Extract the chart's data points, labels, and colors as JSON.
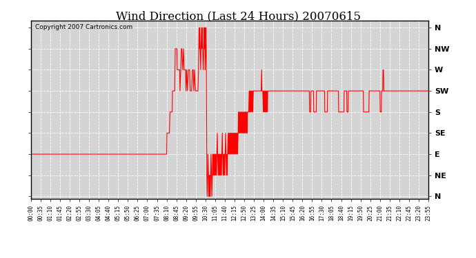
{
  "title": "Wind Direction (Last 24 Hours) 20070615",
  "copyright": "Copyright 2007 Cartronics.com",
  "line_color": "#ff0000",
  "bg_color": "#ffffff",
  "plot_bg_color": "#d8d8d8",
  "ytick_labels": [
    "N",
    "NW",
    "W",
    "SW",
    "S",
    "SE",
    "E",
    "NE",
    "N"
  ],
  "ytick_values": [
    360,
    315,
    270,
    225,
    180,
    135,
    90,
    45,
    0
  ],
  "ylim": [
    0,
    360
  ],
  "xtick_labels": [
    "00:00",
    "00:35",
    "01:10",
    "01:45",
    "02:20",
    "02:55",
    "03:30",
    "04:05",
    "04:40",
    "05:15",
    "05:50",
    "06:25",
    "07:00",
    "07:35",
    "08:10",
    "08:45",
    "09:20",
    "09:55",
    "10:30",
    "11:05",
    "11:40",
    "12:15",
    "12:50",
    "13:25",
    "14:00",
    "14:35",
    "15:10",
    "15:45",
    "16:20",
    "16:55",
    "17:30",
    "18:05",
    "18:40",
    "19:15",
    "19:50",
    "20:25",
    "21:00",
    "21:35",
    "22:10",
    "22:45",
    "23:20",
    "23:55"
  ],
  "wind_data": [
    [
      0,
      90
    ],
    [
      5,
      90
    ],
    [
      480,
      90
    ],
    [
      485,
      90
    ],
    [
      487,
      90
    ],
    [
      490,
      90
    ],
    [
      491,
      135
    ],
    [
      500,
      135
    ],
    [
      502,
      180
    ],
    [
      510,
      180
    ],
    [
      511,
      225
    ],
    [
      519,
      225
    ],
    [
      520,
      270
    ],
    [
      521,
      315
    ],
    [
      527,
      315
    ],
    [
      528,
      270
    ],
    [
      537,
      270
    ],
    [
      538,
      225
    ],
    [
      541,
      270
    ],
    [
      543,
      315
    ],
    [
      545,
      315
    ],
    [
      548,
      270
    ],
    [
      551,
      315
    ],
    [
      553,
      270
    ],
    [
      558,
      270
    ],
    [
      560,
      225
    ],
    [
      562,
      270
    ],
    [
      565,
      225
    ],
    [
      568,
      270
    ],
    [
      573,
      270
    ],
    [
      575,
      225
    ],
    [
      580,
      225
    ],
    [
      583,
      270
    ],
    [
      586,
      270
    ],
    [
      588,
      225
    ],
    [
      591,
      270
    ],
    [
      594,
      225
    ],
    [
      598,
      225
    ],
    [
      600,
      225
    ],
    [
      603,
      225
    ],
    [
      605,
      270
    ],
    [
      607,
      360
    ],
    [
      608,
      315
    ],
    [
      610,
      360
    ],
    [
      611,
      315
    ],
    [
      613,
      270
    ],
    [
      614,
      315
    ],
    [
      616,
      360
    ],
    [
      617,
      315
    ],
    [
      619,
      360
    ],
    [
      620,
      315
    ],
    [
      622,
      270
    ],
    [
      624,
      315
    ],
    [
      625,
      360
    ],
    [
      626,
      315
    ],
    [
      628,
      360
    ],
    [
      629,
      270
    ],
    [
      631,
      315
    ],
    [
      632,
      360
    ],
    [
      633,
      315
    ],
    [
      635,
      45
    ],
    [
      636,
      0
    ],
    [
      638,
      45
    ],
    [
      639,
      90
    ],
    [
      641,
      45
    ],
    [
      642,
      0
    ],
    [
      643,
      45
    ],
    [
      645,
      0
    ],
    [
      646,
      45
    ],
    [
      647,
      0
    ],
    [
      649,
      45
    ],
    [
      650,
      90
    ],
    [
      652,
      45
    ],
    [
      653,
      0
    ],
    [
      655,
      45
    ],
    [
      656,
      90
    ],
    [
      658,
      45
    ],
    [
      659,
      90
    ],
    [
      661,
      45
    ],
    [
      662,
      90
    ],
    [
      664,
      45
    ],
    [
      665,
      90
    ],
    [
      667,
      45
    ],
    [
      668,
      90
    ],
    [
      670,
      45
    ],
    [
      671,
      90
    ],
    [
      673,
      135
    ],
    [
      674,
      90
    ],
    [
      676,
      45
    ],
    [
      677,
      90
    ],
    [
      679,
      45
    ],
    [
      680,
      90
    ],
    [
      682,
      45
    ],
    [
      683,
      90
    ],
    [
      685,
      45
    ],
    [
      686,
      90
    ],
    [
      688,
      45
    ],
    [
      689,
      90
    ],
    [
      691,
      135
    ],
    [
      692,
      90
    ],
    [
      694,
      45
    ],
    [
      695,
      90
    ],
    [
      697,
      45
    ],
    [
      698,
      90
    ],
    [
      700,
      45
    ],
    [
      701,
      90
    ],
    [
      703,
      135
    ],
    [
      704,
      90
    ],
    [
      706,
      45
    ],
    [
      707,
      90
    ],
    [
      709,
      45
    ],
    [
      710,
      90
    ],
    [
      712,
      135
    ],
    [
      713,
      90
    ],
    [
      715,
      135
    ],
    [
      716,
      90
    ],
    [
      718,
      135
    ],
    [
      719,
      90
    ],
    [
      721,
      135
    ],
    [
      722,
      90
    ],
    [
      724,
      135
    ],
    [
      725,
      90
    ],
    [
      727,
      135
    ],
    [
      728,
      90
    ],
    [
      730,
      135
    ],
    [
      731,
      90
    ],
    [
      733,
      135
    ],
    [
      734,
      90
    ],
    [
      736,
      135
    ],
    [
      737,
      90
    ],
    [
      739,
      135
    ],
    [
      740,
      90
    ],
    [
      742,
      135
    ],
    [
      743,
      90
    ],
    [
      745,
      135
    ],
    [
      746,
      90
    ],
    [
      748,
      135
    ],
    [
      749,
      180
    ],
    [
      751,
      135
    ],
    [
      752,
      180
    ],
    [
      754,
      135
    ],
    [
      755,
      180
    ],
    [
      757,
      135
    ],
    [
      758,
      180
    ],
    [
      760,
      135
    ],
    [
      761,
      180
    ],
    [
      763,
      135
    ],
    [
      764,
      180
    ],
    [
      766,
      135
    ],
    [
      767,
      180
    ],
    [
      769,
      135
    ],
    [
      770,
      180
    ],
    [
      772,
      135
    ],
    [
      773,
      180
    ],
    [
      775,
      135
    ],
    [
      776,
      180
    ],
    [
      778,
      135
    ],
    [
      779,
      180
    ],
    [
      781,
      135
    ],
    [
      782,
      180
    ],
    [
      784,
      180
    ],
    [
      786,
      180
    ],
    [
      788,
      225
    ],
    [
      789,
      180
    ],
    [
      791,
      225
    ],
    [
      792,
      180
    ],
    [
      794,
      225
    ],
    [
      795,
      180
    ],
    [
      797,
      225
    ],
    [
      798,
      180
    ],
    [
      800,
      225
    ],
    [
      801,
      180
    ],
    [
      803,
      225
    ],
    [
      804,
      225
    ],
    [
      806,
      225
    ],
    [
      807,
      225
    ],
    [
      809,
      225
    ],
    [
      810,
      225
    ],
    [
      812,
      225
    ],
    [
      813,
      225
    ],
    [
      815,
      225
    ],
    [
      816,
      225
    ],
    [
      818,
      225
    ],
    [
      819,
      225
    ],
    [
      821,
      225
    ],
    [
      822,
      225
    ],
    [
      824,
      225
    ],
    [
      825,
      225
    ],
    [
      827,
      225
    ],
    [
      828,
      225
    ],
    [
      830,
      225
    ],
    [
      831,
      225
    ],
    [
      833,
      270
    ],
    [
      834,
      225
    ],
    [
      836,
      225
    ],
    [
      837,
      225
    ],
    [
      839,
      180
    ],
    [
      840,
      225
    ],
    [
      842,
      180
    ],
    [
      843,
      225
    ],
    [
      845,
      180
    ],
    [
      846,
      225
    ],
    [
      848,
      180
    ],
    [
      849,
      225
    ],
    [
      851,
      180
    ],
    [
      852,
      225
    ],
    [
      854,
      180
    ],
    [
      855,
      225
    ],
    [
      857,
      225
    ],
    [
      858,
      225
    ],
    [
      860,
      225
    ],
    [
      861,
      225
    ],
    [
      863,
      225
    ],
    [
      864,
      225
    ],
    [
      866,
      225
    ],
    [
      867,
      225
    ],
    [
      869,
      225
    ],
    [
      870,
      225
    ],
    [
      872,
      225
    ],
    [
      873,
      225
    ],
    [
      875,
      225
    ],
    [
      876,
      225
    ],
    [
      878,
      225
    ],
    [
      879,
      225
    ],
    [
      881,
      225
    ],
    [
      882,
      225
    ],
    [
      884,
      225
    ],
    [
      885,
      225
    ],
    [
      887,
      225
    ],
    [
      888,
      225
    ],
    [
      890,
      225
    ],
    [
      891,
      225
    ],
    [
      893,
      225
    ],
    [
      894,
      225
    ],
    [
      896,
      225
    ],
    [
      897,
      225
    ],
    [
      899,
      225
    ],
    [
      900,
      225
    ],
    [
      902,
      225
    ],
    [
      903,
      225
    ],
    [
      905,
      225
    ],
    [
      906,
      225
    ],
    [
      908,
      225
    ],
    [
      909,
      225
    ],
    [
      911,
      225
    ],
    [
      912,
      225
    ],
    [
      914,
      225
    ],
    [
      915,
      225
    ],
    [
      1005,
      225
    ],
    [
      1006,
      180
    ],
    [
      1010,
      180
    ],
    [
      1011,
      225
    ],
    [
      1020,
      225
    ],
    [
      1021,
      180
    ],
    [
      1030,
      180
    ],
    [
      1031,
      225
    ],
    [
      1060,
      225
    ],
    [
      1061,
      180
    ],
    [
      1070,
      180
    ],
    [
      1071,
      225
    ],
    [
      1110,
      225
    ],
    [
      1111,
      180
    ],
    [
      1130,
      180
    ],
    [
      1131,
      225
    ],
    [
      1140,
      225
    ],
    [
      1141,
      180
    ],
    [
      1145,
      180
    ],
    [
      1146,
      225
    ],
    [
      1200,
      225
    ],
    [
      1201,
      180
    ],
    [
      1220,
      180
    ],
    [
      1221,
      225
    ],
    [
      1260,
      225
    ],
    [
      1261,
      180
    ],
    [
      1265,
      180
    ],
    [
      1266,
      225
    ],
    [
      1270,
      225
    ],
    [
      1271,
      270
    ],
    [
      1273,
      270
    ],
    [
      1274,
      225
    ],
    [
      1278,
      225
    ],
    [
      1279,
      225
    ],
    [
      1435,
      225
    ]
  ]
}
